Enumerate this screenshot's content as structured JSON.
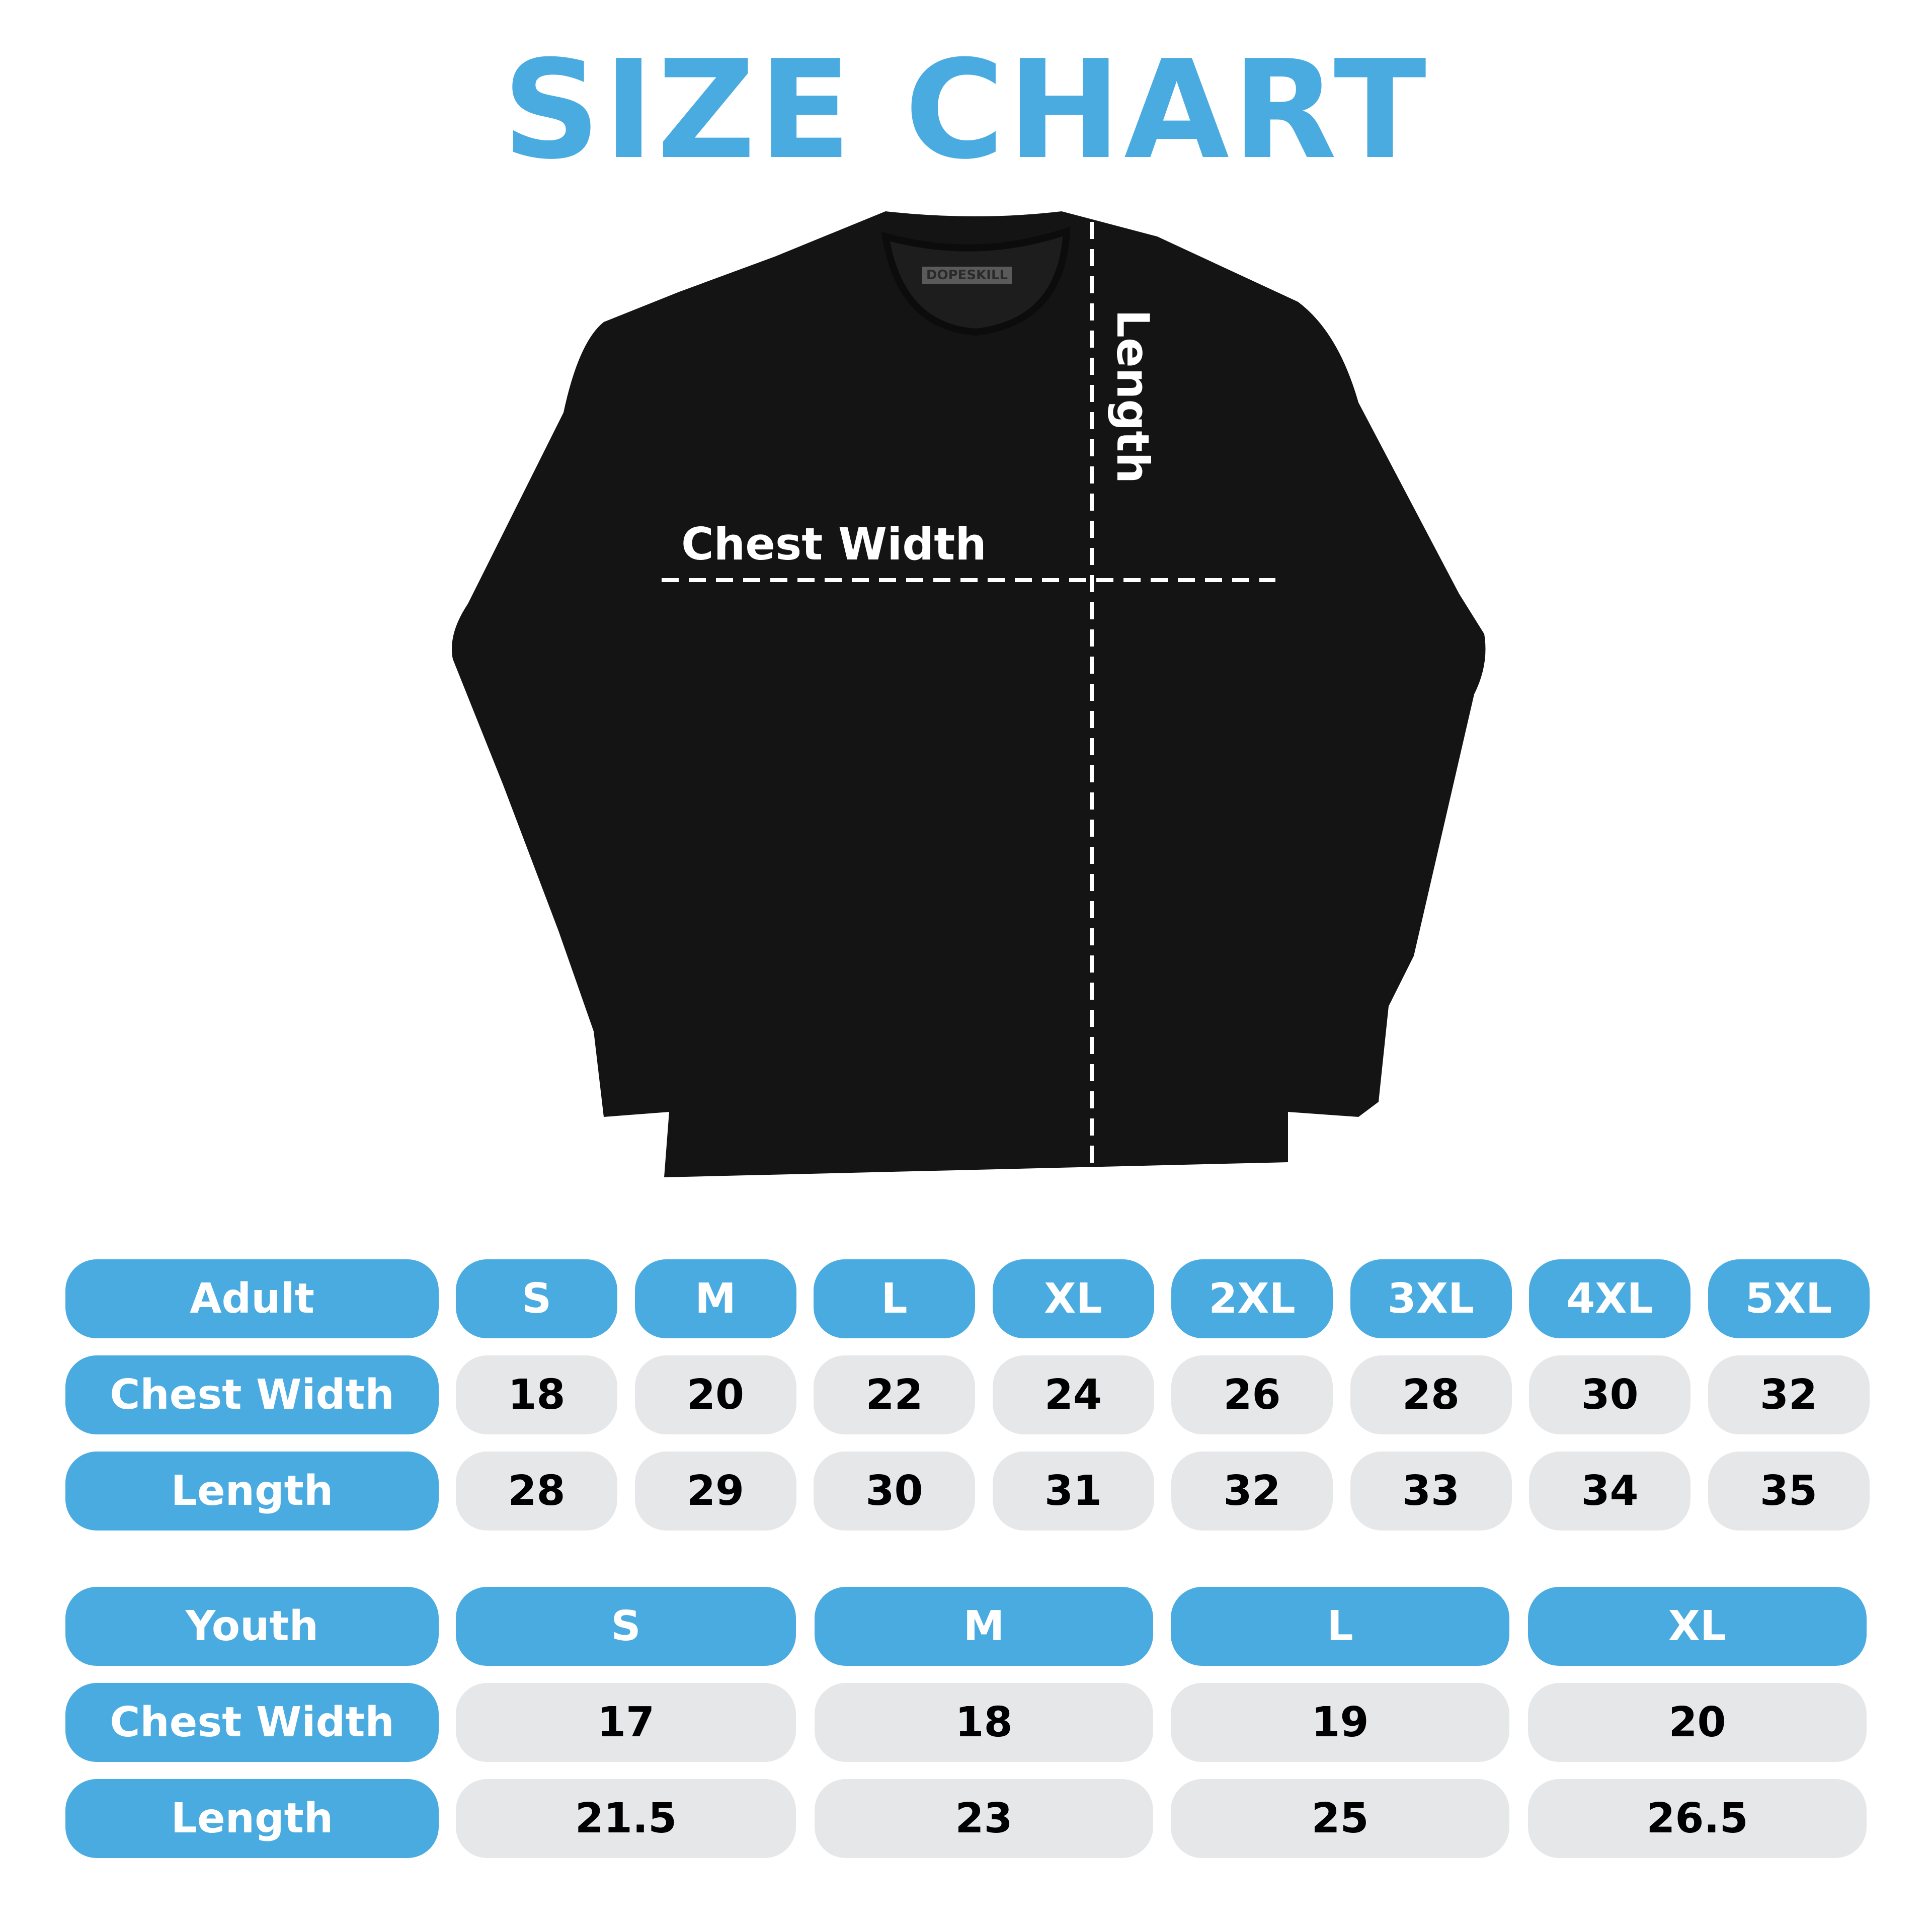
{
  "title": "SIZE CHART",
  "brand_label": "DOPESKILL",
  "shirt_labels": {
    "chest": "Chest Width",
    "length": "Length"
  },
  "colors": {
    "accent": "#4aabe0",
    "cell": "#e6e7e9",
    "shirt": "#141414"
  },
  "adult": {
    "header": "Adult",
    "sizes": [
      "S",
      "M",
      "L",
      "XL",
      "2XL",
      "3XL",
      "4XL",
      "5XL"
    ],
    "rows": [
      {
        "label": "Chest Width",
        "values": [
          "18",
          "20",
          "22",
          "24",
          "26",
          "28",
          "30",
          "32"
        ]
      },
      {
        "label": "Length",
        "values": [
          "28",
          "29",
          "30",
          "31",
          "32",
          "33",
          "34",
          "35"
        ]
      }
    ]
  },
  "youth": {
    "header": "Youth",
    "sizes": [
      "S",
      "M",
      "L",
      "XL"
    ],
    "rows": [
      {
        "label": "Chest Width",
        "values": [
          "17",
          "18",
          "19",
          "20"
        ]
      },
      {
        "label": "Length",
        "values": [
          "21.5",
          "23",
          "25",
          "26.5"
        ]
      }
    ]
  }
}
